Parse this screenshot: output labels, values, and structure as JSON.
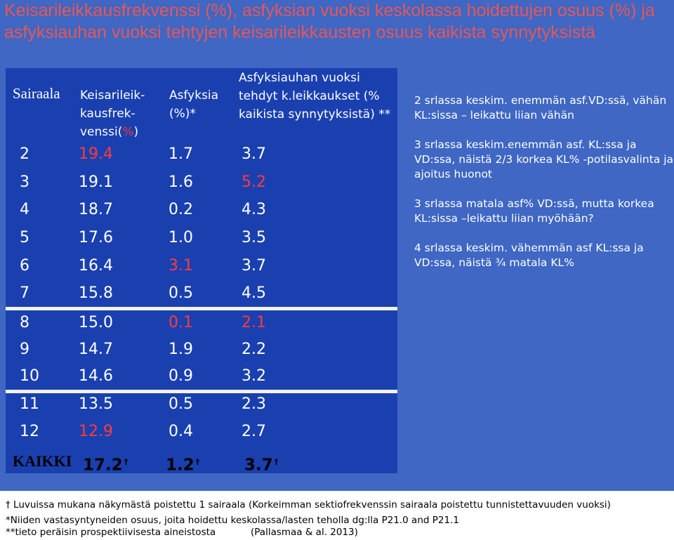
{
  "title": "Keisarileikkausfrekvenssi  (%), asfyksian vuoksi keskolassa hoidettujen osuus (%) ja asfyksiauhan vuoksi tehtyjen keisarileikkausten osuus kaikista synnytyksistä",
  "table": {
    "headers": {
      "sairaala": "Sairaala",
      "ks_line1": "Keisarileik-",
      "ks_line2": "kausfrek-",
      "ks_line3a": "venssi(",
      "ks_line3b": "%",
      "ks_line3c": ")",
      "asf_line1": "Asfyksia",
      "asf_line2": "(%)*",
      "auha_line1": "Asfyksiauhan vuoksi",
      "auha_line2": "tehdyt k.leikkaukset (%",
      "auha_line3": "kaikista synnytyksistä) **"
    },
    "rows": [
      {
        "id": "2",
        "ks": "19.4",
        "asf": "1.7",
        "auha": "3.7"
      },
      {
        "id": "3",
        "ks": "19.1",
        "asf": "1.6",
        "auha": "5.2"
      },
      {
        "id": "4",
        "ks": "18.7",
        "asf": "0.2",
        "auha": "4.3"
      },
      {
        "id": "5",
        "ks": "17.6",
        "asf": "1.0",
        "auha": "3.5"
      },
      {
        "id": "6",
        "ks": "16.4",
        "asf": "3.1",
        "auha": "3.7"
      },
      {
        "id": "7",
        "ks": "15.8",
        "asf": "0.5",
        "auha": "4.5"
      },
      {
        "id": "8",
        "ks": "15.0",
        "asf": "0.1",
        "auha": "2.1"
      },
      {
        "id": "9",
        "ks": "14.7",
        "asf": "1.9",
        "auha": "2.2"
      },
      {
        "id": "10",
        "ks": "14.6",
        "asf": "0.9",
        "auha": "3.2"
      },
      {
        "id": "11",
        "ks": "13.5",
        "asf": "0.5",
        "auha": "2.3"
      },
      {
        "id": "12",
        "ks": "12.9",
        "asf": "0.4",
        "auha": "2.7"
      }
    ],
    "total": {
      "label": "KAIKKI",
      "ks": "17.2",
      "asf": "1.2",
      "auha": "3.7",
      "mark": "†"
    },
    "highlight_color": "#ff3a3a"
  },
  "notes": [
    "2 srlassa keskim. enemmän asf.VD:ssä, vähän KL:sissa – leikattu liian vähän",
    "3 srlassa keskim.enemmän asf. KL:ssa ja VD:ssa, näistä 2/3 korkea KL% -potilasvalinta ja ajoitus huonot",
    "3 srlassa matala asf% VD:ssä, mutta korkea KL:sissa –leikattu liian myöhään?",
    "4 srlassa keskim. vähemmän asf KL:ssa ja VD:ssa, näistä ¾ matala KL%"
  ],
  "footnotes": {
    "line1": "† Luvuissa mukana näkymästä poistettu 1 sairaala (Korkeimman sektiofrekvenssin sairaala poistettu  tunnistettavuuden vuoksi)",
    "line2": "*Niiden vastasyntyneiden osuus, joita hoidettu keskolassa/lasten teholla dg:lla P21.0 and P21.1",
    "line3": "**tieto peräisin prospektiivisesta aineistosta",
    "reference": "(Pallasmaa & al. 2013)"
  }
}
